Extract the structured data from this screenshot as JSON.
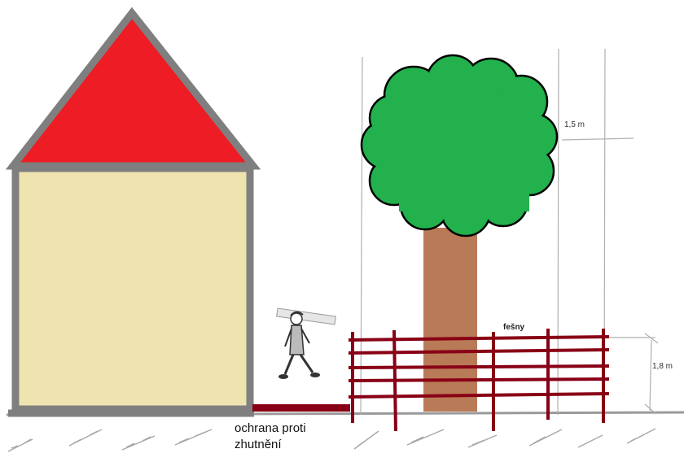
{
  "labels": {
    "tree_spread_dimension": "1,5 m",
    "fence_note": "fešny",
    "fence_height_dimension": "1,8 m",
    "protection_line1": "ochrana proti",
    "protection_line2": "zhutnění"
  },
  "colors": {
    "roof": "#ee1c24",
    "wall": "#efe4b0",
    "outline": "#7f7f7f",
    "canopy": "#22b14c",
    "trunk": "#b97a57",
    "fence": "#880015",
    "guide_lines": "#b0b0b0"
  },
  "icons": {
    "worker": "worker-carrying-plank-icon"
  }
}
